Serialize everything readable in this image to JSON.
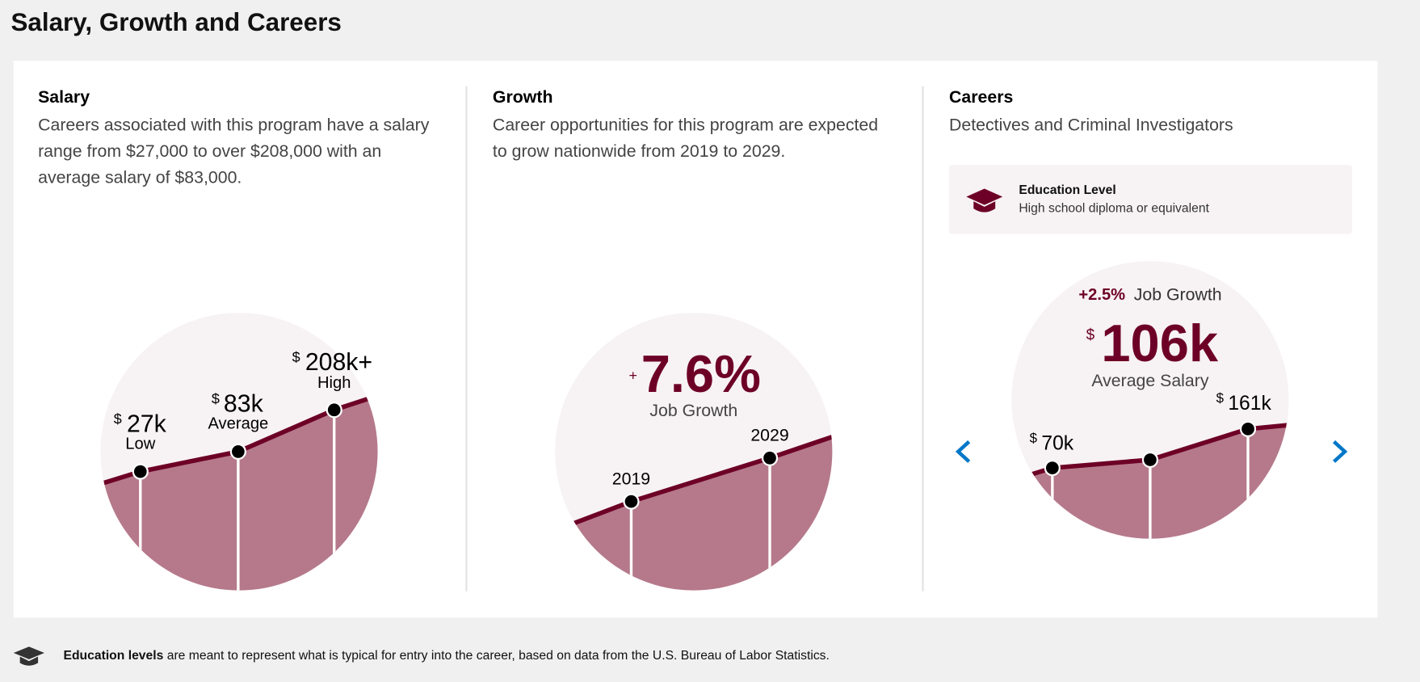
{
  "header": {
    "title": "Salary, Growth and Careers"
  },
  "salary": {
    "title": "Salary",
    "description": "Careers associated with this program have a salary range from $27,000 to over $208,000 with an average salary of $83,000.",
    "points": [
      {
        "currency": "$",
        "value": "27k",
        "label": "Low"
      },
      {
        "currency": "$",
        "value": "83k",
        "label": "Average"
      },
      {
        "currency": "$",
        "value": "208k+",
        "label": "High"
      }
    ]
  },
  "growth": {
    "title": "Growth",
    "description": "Career opportunities for this program are expected to grow nationwide from 2019 to 2029.",
    "sign": "+",
    "value": "7.6%",
    "label": "Job Growth",
    "years": [
      "2019",
      "2029"
    ]
  },
  "careers": {
    "title": "Careers",
    "career": "Detectives and Criminal Investigators",
    "education": {
      "title": "Education Level",
      "text": "High school diploma or equivalent"
    },
    "growth_value": "+2.5%",
    "growth_label": "Job Growth",
    "currency": "$",
    "salary": "106k",
    "salary_label": "Average Salary",
    "points": [
      {
        "currency": "$",
        "value": "70k"
      },
      {
        "currency": "$",
        "value": "161k"
      }
    ]
  },
  "footer": {
    "bold": "Education levels",
    "text": "are meant to represent what is typical for entry into the career, based on data from the U.S. Bureau of Labor Statistics."
  }
}
